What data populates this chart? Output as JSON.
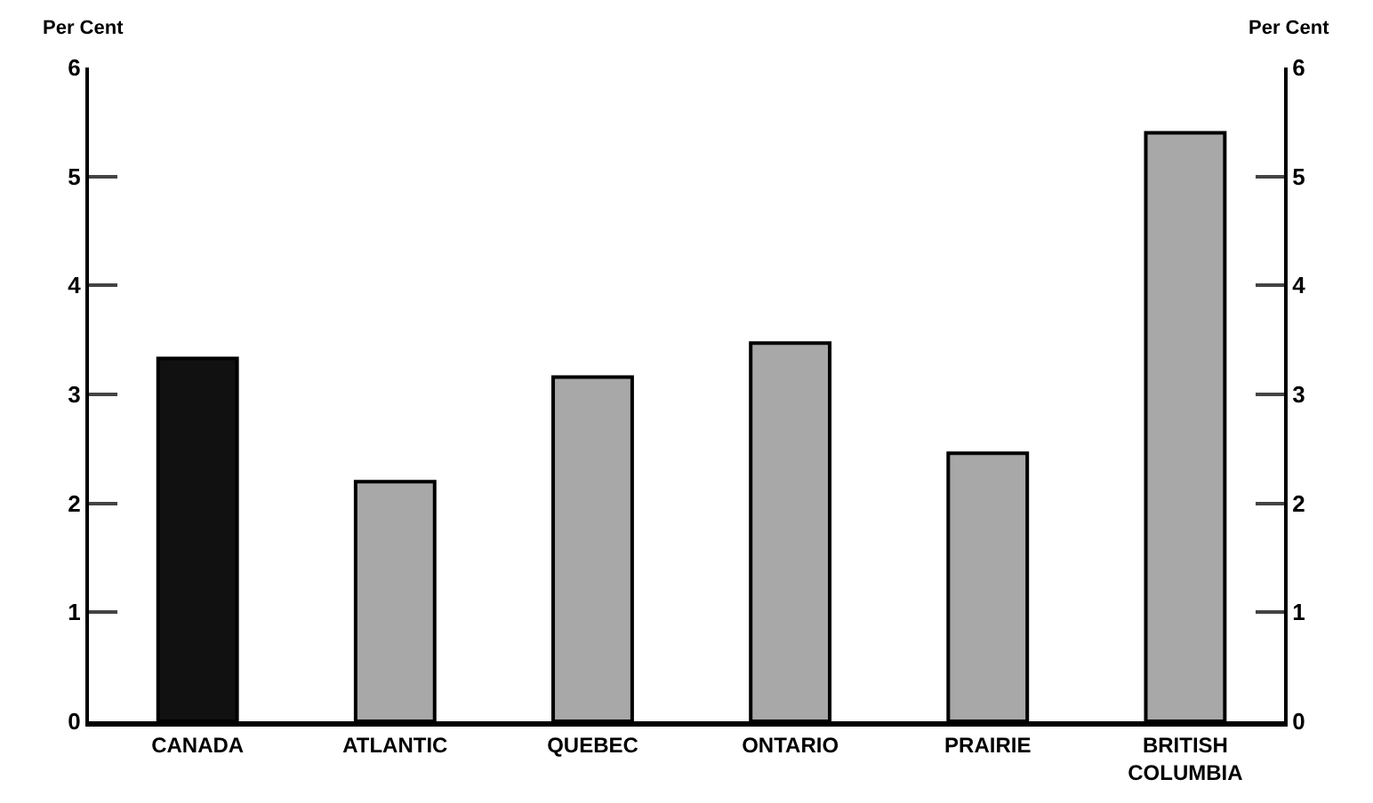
{
  "chart_data": {
    "type": "bar",
    "ylabel": "Per Cent",
    "y2label": "Per Cent",
    "categories": [
      "CANADA",
      "ATLANTIC",
      "QUEBEC",
      "ONTARIO",
      "PRAIRIE",
      "BRITISH COLUMBIA"
    ],
    "values": [
      3.33,
      2.2,
      3.16,
      3.47,
      2.46,
      5.4
    ],
    "colors": [
      "#111111",
      "#a8a8a8",
      "#a8a8a8",
      "#a8a8a8",
      "#a8a8a8",
      "#a8a8a8"
    ],
    "ylim": [
      0,
      6
    ],
    "yticks": [
      0,
      1,
      2,
      3,
      4,
      5,
      6
    ],
    "y2lim": [
      0,
      6
    ],
    "y2ticks": [
      0,
      1,
      2,
      3,
      4,
      5,
      6
    ],
    "grid": false,
    "legend": false
  }
}
